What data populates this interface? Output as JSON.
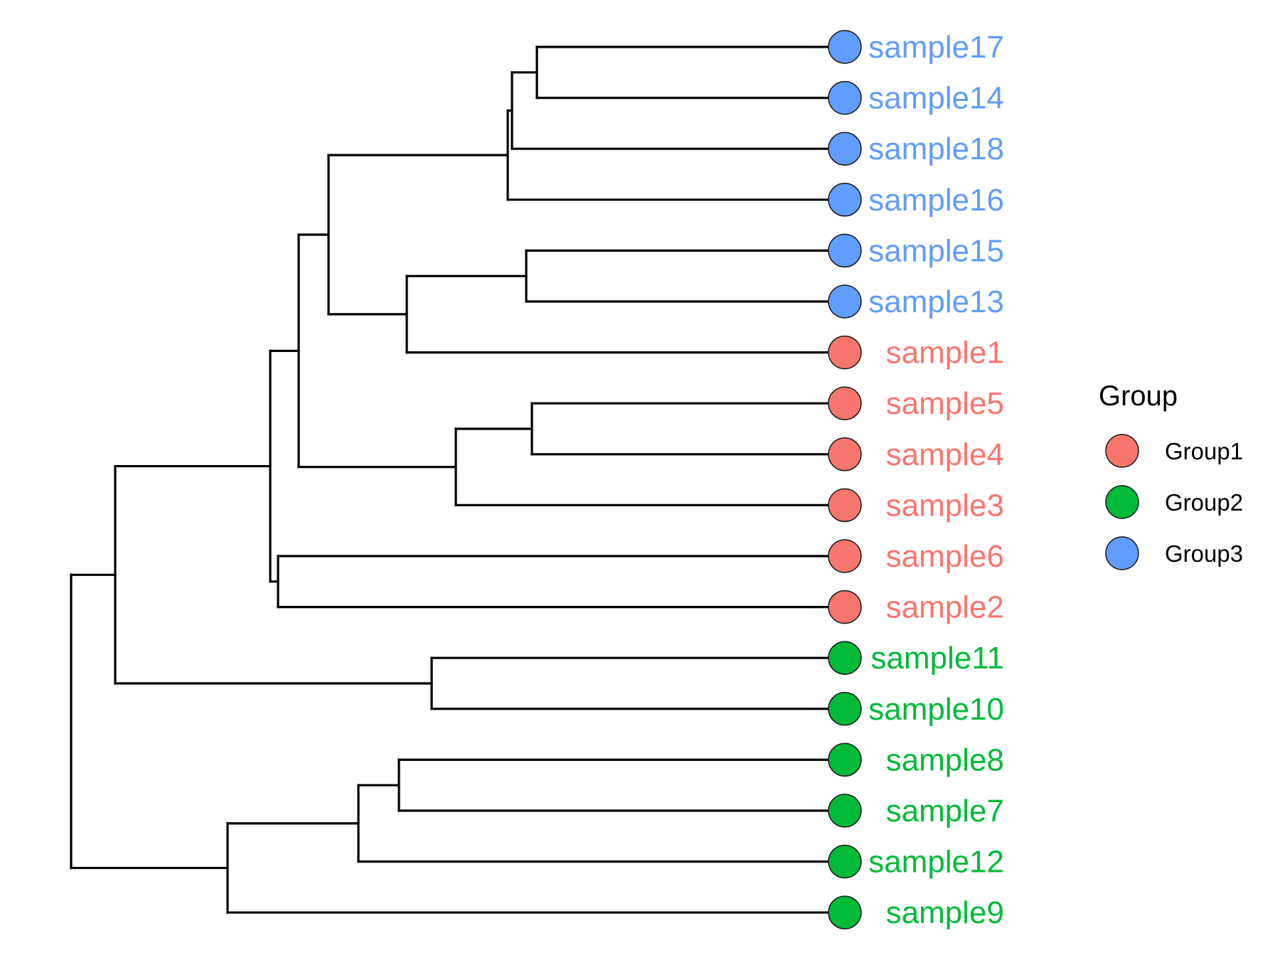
{
  "legend": {
    "title": "Group",
    "items": [
      {
        "key": "Group1",
        "label": "Group1",
        "color": "#F8766D"
      },
      {
        "key": "Group2",
        "label": "Group2",
        "color": "#00BA38"
      },
      {
        "key": "Group3",
        "label": "Group3",
        "color": "#619CFF"
      }
    ]
  },
  "tree": {
    "tips": [
      {
        "name": "sample17",
        "group": "Group3"
      },
      {
        "name": "sample14",
        "group": "Group3"
      },
      {
        "name": "sample18",
        "group": "Group3"
      },
      {
        "name": "sample16",
        "group": "Group3"
      },
      {
        "name": "sample15",
        "group": "Group3"
      },
      {
        "name": "sample13",
        "group": "Group3"
      },
      {
        "name": "sample1",
        "group": "Group1"
      },
      {
        "name": "sample5",
        "group": "Group1"
      },
      {
        "name": "sample4",
        "group": "Group1"
      },
      {
        "name": "sample3",
        "group": "Group1"
      },
      {
        "name": "sample6",
        "group": "Group1"
      },
      {
        "name": "sample2",
        "group": "Group1"
      },
      {
        "name": "sample11",
        "group": "Group2"
      },
      {
        "name": "sample10",
        "group": "Group2"
      },
      {
        "name": "sample8",
        "group": "Group2"
      },
      {
        "name": "sample7",
        "group": "Group2"
      },
      {
        "name": "sample12",
        "group": "Group2"
      },
      {
        "name": "sample9",
        "group": "Group2"
      }
    ],
    "nodes": [
      {
        "id": "n17_14",
        "children": [
          "sample17",
          "sample14"
        ]
      },
      {
        "id": "n17_18",
        "children": [
          "n17_14",
          "sample18"
        ]
      },
      {
        "id": "n17_16",
        "children": [
          "n17_18",
          "sample16"
        ]
      },
      {
        "id": "n15_13",
        "children": [
          "sample15",
          "sample13"
        ]
      },
      {
        "id": "n15_1",
        "children": [
          "n15_13",
          "sample1"
        ]
      },
      {
        "id": "nG3G1",
        "children": [
          "n17_16",
          "n15_1"
        ]
      },
      {
        "id": "n5_4",
        "children": [
          "sample5",
          "sample4"
        ]
      },
      {
        "id": "n5_3",
        "children": [
          "n5_4",
          "sample3"
        ]
      },
      {
        "id": "nTop",
        "children": [
          "nG3G1",
          "n5_3"
        ]
      },
      {
        "id": "n6_2",
        "children": [
          "sample6",
          "sample2"
        ]
      },
      {
        "id": "nTop2",
        "children": [
          "nTop",
          "n6_2"
        ]
      },
      {
        "id": "n11_10",
        "children": [
          "sample11",
          "sample10"
        ]
      },
      {
        "id": "nUpper",
        "children": [
          "nTop2",
          "n11_10"
        ]
      },
      {
        "id": "n8_7",
        "children": [
          "sample8",
          "sample7"
        ]
      },
      {
        "id": "n8_12",
        "children": [
          "n8_7",
          "sample12"
        ]
      },
      {
        "id": "n8_9",
        "children": [
          "n8_12",
          "sample9"
        ]
      },
      {
        "id": "root",
        "children": [
          "nUpper",
          "n8_9"
        ]
      }
    ]
  }
}
